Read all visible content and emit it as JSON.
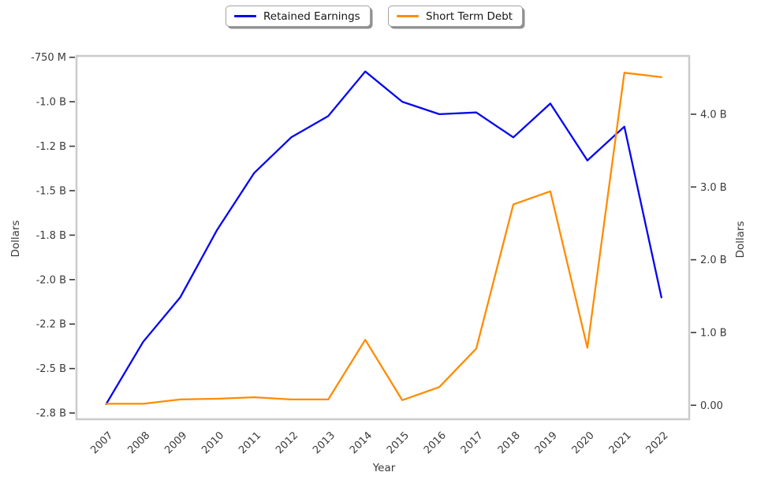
{
  "chart_data": {
    "type": "line",
    "title": "",
    "xlabel": "Year",
    "ylabel_left": "Dollars",
    "ylabel_right": "Dollars",
    "units": "values in billions of dollars (B = billions, M = millions)",
    "grid": false,
    "x": [
      2007,
      2008,
      2009,
      2010,
      2011,
      2012,
      2013,
      2014,
      2015,
      2016,
      2017,
      2018,
      2019,
      2020,
      2021,
      2022
    ],
    "series": [
      {
        "name": "Retained Earnings",
        "axis": "left",
        "color": "#0505f0",
        "values": [
          -2.7,
          -2.35,
          -2.1,
          -1.72,
          -1.4,
          -1.2,
          -1.08,
          -0.83,
          -1.0,
          -1.07,
          -1.06,
          -1.2,
          -1.01,
          -1.33,
          -1.14,
          -2.1
        ]
      },
      {
        "name": "Short Term Debt",
        "axis": "right",
        "color": "#ff8c00",
        "values": [
          0.02,
          0.02,
          0.08,
          0.09,
          0.11,
          0.08,
          0.08,
          0.9,
          0.07,
          0.25,
          0.78,
          2.76,
          2.94,
          0.79,
          4.57,
          4.51
        ]
      }
    ],
    "x_axis": {
      "tick_labels": [
        "2007",
        "2008",
        "2009",
        "2010",
        "2011",
        "2012",
        "2013",
        "2014",
        "2015",
        "2016",
        "2017",
        "2018",
        "2019",
        "2020",
        "2021",
        "2022"
      ],
      "range": [
        2006.2,
        2022.75
      ],
      "label_rotation_deg": 45
    },
    "left_axis": {
      "tick_values": [
        -0.75,
        -1.0,
        -1.25,
        -1.5,
        -1.75,
        -2.0,
        -2.25,
        -2.5,
        -2.75
      ],
      "tick_labels": [
        "-750 M",
        "-1.0 B",
        "-1.2 B",
        "-1.5 B",
        "-1.8 B",
        "-2.0 B",
        "-2.2 B",
        "-2.5 B",
        "-2.8 B"
      ],
      "range": [
        -2.785,
        -0.7425
      ]
    },
    "right_axis": {
      "tick_values": [
        0,
        1,
        2,
        3,
        4
      ],
      "tick_labels": [
        "0.00",
        "1.0 B",
        "2.0 B",
        "3.0 B",
        "4.0 B"
      ],
      "range": [
        -0.192,
        4.801
      ]
    },
    "legend": {
      "position": "top-center",
      "entries": [
        "Retained Earnings",
        "Short Term Debt"
      ]
    }
  }
}
